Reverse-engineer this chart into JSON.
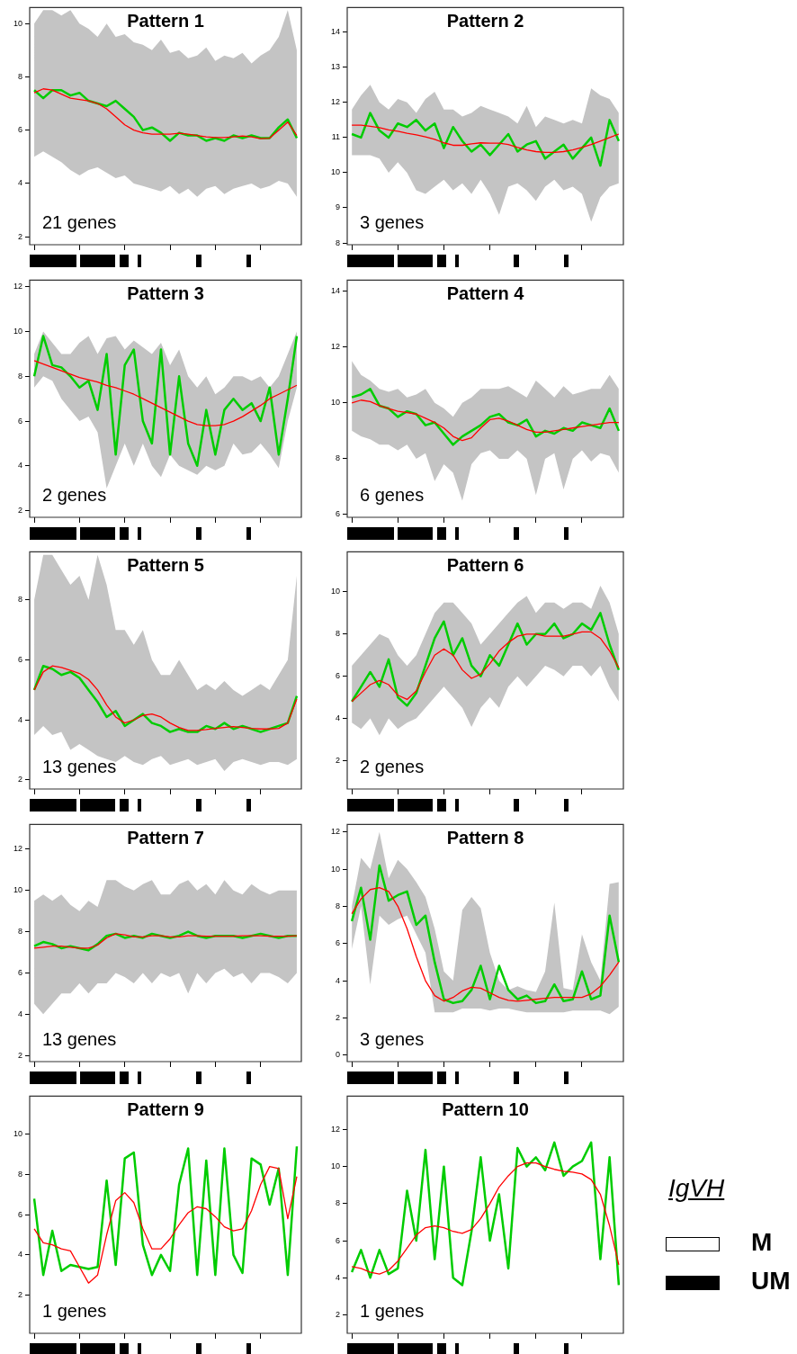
{
  "chart_data": [
    {
      "type": "line",
      "title": "Pattern 1",
      "annotations": [
        "21 genes"
      ],
      "marker": "none",
      "tick_labels": "y",
      "ylim": [
        1.7,
        10.6
      ],
      "yticks": [
        2,
        4,
        6,
        8,
        10
      ],
      "categories": [
        null,
        null,
        null,
        null,
        null,
        null,
        null,
        null,
        null,
        null,
        null,
        null,
        null,
        null,
        null,
        null,
        null,
        null,
        null,
        null,
        null,
        null,
        null,
        null,
        null,
        null,
        null,
        null,
        null,
        null
      ],
      "series": [
        {
          "color": "#00cc00",
          "values": [
            7.5,
            7.2,
            7.5,
            7.5,
            7.3,
            7.4,
            7.1,
            7.0,
            6.9,
            7.1,
            6.8,
            6.5,
            6.0,
            6.1,
            5.9,
            5.6,
            5.9,
            5.8,
            5.8,
            5.6,
            5.7,
            5.6,
            5.8,
            5.7,
            5.8,
            5.7,
            5.7,
            6.1,
            6.4,
            5.7
          ],
          "lower": [
            5.0,
            5.2,
            5.0,
            4.8,
            4.5,
            4.3,
            4.5,
            4.6,
            4.4,
            4.2,
            4.3,
            4.0,
            3.9,
            3.8,
            3.7,
            3.9,
            3.6,
            3.8,
            3.5,
            3.8,
            3.9,
            3.6,
            3.8,
            3.9,
            4.0,
            3.8,
            3.9,
            4.1,
            4.0,
            3.5
          ],
          "upper": [
            10.0,
            10.5,
            10.5,
            10.3,
            10.5,
            10.0,
            9.8,
            9.5,
            10.0,
            9.5,
            9.6,
            9.3,
            9.2,
            9.0,
            9.4,
            8.9,
            9.0,
            8.7,
            8.8,
            9.1,
            8.6,
            8.8,
            8.7,
            8.9,
            8.5,
            8.8,
            9.0,
            9.5,
            10.5,
            9.0
          ]
        },
        {
          "color": "#ff0000",
          "values": [
            7.4,
            7.55,
            7.5,
            7.35,
            7.2,
            7.15,
            7.1,
            7.0,
            6.8,
            6.5,
            6.2,
            6.0,
            5.9,
            5.85,
            5.85,
            5.85,
            5.88,
            5.85,
            5.8,
            5.75,
            5.72,
            5.72,
            5.75,
            5.78,
            5.75,
            5.68,
            5.7,
            6.0,
            6.3,
            5.8
          ]
        }
      ]
    },
    {
      "type": "line",
      "title": "Pattern 2",
      "annotations": [
        "3 genes"
      ],
      "marker": "none",
      "tick_labels": "y",
      "ylim": [
        7.95,
        14.7
      ],
      "yticks": [
        8,
        9,
        10,
        11,
        12,
        13,
        14
      ],
      "categories": [
        null,
        null,
        null,
        null,
        null,
        null,
        null,
        null,
        null,
        null,
        null,
        null,
        null,
        null,
        null,
        null,
        null,
        null,
        null,
        null,
        null,
        null,
        null,
        null,
        null,
        null,
        null,
        null,
        null,
        null
      ],
      "series": [
        {
          "color": "#00cc00",
          "values": [
            11.1,
            11.0,
            11.7,
            11.2,
            11.0,
            11.4,
            11.3,
            11.5,
            11.2,
            11.4,
            10.7,
            11.3,
            10.9,
            10.6,
            10.8,
            10.5,
            10.8,
            11.1,
            10.6,
            10.8,
            10.9,
            10.4,
            10.6,
            10.8,
            10.4,
            10.7,
            11.0,
            10.2,
            11.5,
            10.9
          ],
          "lower": [
            10.5,
            10.5,
            10.5,
            10.4,
            10.0,
            10.3,
            10.0,
            9.5,
            9.4,
            9.6,
            9.8,
            9.5,
            9.7,
            9.4,
            9.8,
            9.4,
            8.8,
            9.6,
            9.7,
            9.5,
            9.2,
            9.6,
            9.8,
            9.5,
            9.6,
            9.4,
            8.6,
            9.3,
            9.6,
            9.7
          ],
          "upper": [
            11.8,
            12.2,
            12.5,
            12.0,
            11.8,
            12.1,
            12.0,
            11.7,
            12.1,
            12.3,
            11.8,
            11.8,
            11.6,
            11.7,
            11.9,
            11.8,
            11.7,
            11.6,
            11.4,
            11.9,
            11.3,
            11.6,
            11.5,
            11.4,
            11.5,
            11.4,
            12.4,
            12.2,
            12.1,
            11.7
          ]
        },
        {
          "color": "#ff0000",
          "values": [
            11.35,
            11.35,
            11.32,
            11.28,
            11.22,
            11.18,
            11.12,
            11.08,
            11.02,
            10.95,
            10.85,
            10.78,
            10.78,
            10.82,
            10.85,
            10.84,
            10.84,
            10.8,
            10.72,
            10.65,
            10.6,
            10.58,
            10.58,
            10.6,
            10.65,
            10.72,
            10.8,
            10.9,
            11.0,
            11.1
          ]
        }
      ]
    },
    {
      "type": "line",
      "title": "Pattern 3",
      "annotations": [
        "2 genes"
      ],
      "marker": "none",
      "tick_labels": "y",
      "ylim": [
        1.7,
        12.3
      ],
      "yticks": [
        2,
        4,
        6,
        8,
        10,
        12
      ],
      "categories": [
        null,
        null,
        null,
        null,
        null,
        null,
        null,
        null,
        null,
        null,
        null,
        null,
        null,
        null,
        null,
        null,
        null,
        null,
        null,
        null,
        null,
        null,
        null,
        null,
        null,
        null,
        null,
        null,
        null,
        null
      ],
      "series": [
        {
          "color": "#00cc00",
          "values": [
            8.0,
            9.8,
            8.5,
            8.4,
            8.0,
            7.5,
            7.8,
            6.5,
            9.0,
            4.5,
            8.5,
            9.2,
            6.0,
            5.0,
            9.2,
            4.5,
            8.0,
            5.0,
            4.0,
            6.5,
            4.5,
            6.5,
            7.0,
            6.5,
            6.8,
            6.0,
            7.5,
            4.5,
            7.0,
            9.8
          ],
          "lower": [
            7.5,
            8.0,
            7.8,
            7.0,
            6.5,
            6.0,
            6.2,
            5.5,
            3.0,
            4.0,
            5.0,
            4.0,
            5.0,
            4.0,
            3.5,
            4.5,
            4.0,
            3.8,
            3.6,
            4.0,
            3.8,
            4.0,
            5.0,
            4.5,
            4.6,
            5.0,
            4.5,
            3.9,
            6.0,
            7.5
          ],
          "upper": [
            9.0,
            10.0,
            9.5,
            9.0,
            9.0,
            9.5,
            9.8,
            9.0,
            9.7,
            9.8,
            9.2,
            9.6,
            9.3,
            9.0,
            9.5,
            8.5,
            9.2,
            8.0,
            7.5,
            8.0,
            7.2,
            7.5,
            8.0,
            8.0,
            7.8,
            8.0,
            7.5,
            8.0,
            9.0,
            10.0
          ]
        },
        {
          "color": "#ff0000",
          "values": [
            8.7,
            8.55,
            8.4,
            8.25,
            8.1,
            7.95,
            7.85,
            7.75,
            7.6,
            7.5,
            7.35,
            7.2,
            7.0,
            6.8,
            6.6,
            6.4,
            6.2,
            6.0,
            5.85,
            5.8,
            5.8,
            5.85,
            6.0,
            6.2,
            6.45,
            6.7,
            7.0,
            7.2,
            7.4,
            7.6
          ]
        }
      ]
    },
    {
      "type": "line",
      "title": "Pattern 4",
      "annotations": [
        "6 genes"
      ],
      "marker": "none",
      "tick_labels": "y",
      "ylim": [
        5.9,
        14.4
      ],
      "yticks": [
        6,
        8,
        10,
        12,
        14
      ],
      "categories": [
        null,
        null,
        null,
        null,
        null,
        null,
        null,
        null,
        null,
        null,
        null,
        null,
        null,
        null,
        null,
        null,
        null,
        null,
        null,
        null,
        null,
        null,
        null,
        null,
        null,
        null,
        null,
        null,
        null,
        null
      ],
      "series": [
        {
          "color": "#00cc00",
          "values": [
            10.2,
            10.3,
            10.5,
            9.9,
            9.8,
            9.5,
            9.7,
            9.6,
            9.2,
            9.3,
            8.9,
            8.5,
            8.8,
            9.0,
            9.2,
            9.5,
            9.6,
            9.3,
            9.2,
            9.4,
            8.8,
            9.0,
            8.9,
            9.1,
            9.0,
            9.3,
            9.2,
            9.1,
            9.8,
            9.0
          ],
          "lower": [
            9.0,
            8.8,
            8.7,
            8.5,
            8.5,
            8.3,
            8.5,
            8.0,
            8.2,
            7.2,
            7.8,
            7.5,
            6.5,
            7.8,
            8.2,
            8.3,
            8.0,
            8.0,
            8.3,
            8.0,
            6.7,
            8.0,
            8.2,
            6.9,
            8.0,
            8.3,
            7.9,
            8.2,
            8.1,
            7.5
          ],
          "upper": [
            11.5,
            11.0,
            10.8,
            10.5,
            10.4,
            10.5,
            10.2,
            10.3,
            10.5,
            10.0,
            9.8,
            9.5,
            10.0,
            10.2,
            10.5,
            10.5,
            10.5,
            10.6,
            10.4,
            10.2,
            10.8,
            10.5,
            10.2,
            10.6,
            10.3,
            10.4,
            10.5,
            10.5,
            11.0,
            10.5
          ]
        },
        {
          "color": "#ff0000",
          "values": [
            10.0,
            10.1,
            10.05,
            9.9,
            9.8,
            9.7,
            9.65,
            9.6,
            9.45,
            9.3,
            9.1,
            8.8,
            8.65,
            8.75,
            9.1,
            9.4,
            9.45,
            9.35,
            9.2,
            9.05,
            8.95,
            8.95,
            9.0,
            9.05,
            9.1,
            9.15,
            9.2,
            9.25,
            9.3,
            9.3
          ]
        }
      ]
    },
    {
      "type": "line",
      "title": "Pattern 5",
      "annotations": [
        "13 genes"
      ],
      "marker": "none",
      "tick_labels": "y",
      "ylim": [
        1.7,
        9.6
      ],
      "yticks": [
        2,
        4,
        6,
        8
      ],
      "categories": [
        null,
        null,
        null,
        null,
        null,
        null,
        null,
        null,
        null,
        null,
        null,
        null,
        null,
        null,
        null,
        null,
        null,
        null,
        null,
        null,
        null,
        null,
        null,
        null,
        null,
        null,
        null,
        null,
        null,
        null
      ],
      "series": [
        {
          "color": "#00cc00",
          "values": [
            5.0,
            5.8,
            5.7,
            5.5,
            5.6,
            5.4,
            5.0,
            4.6,
            4.1,
            4.3,
            3.8,
            4.0,
            4.2,
            3.9,
            3.8,
            3.6,
            3.7,
            3.6,
            3.6,
            3.8,
            3.7,
            3.9,
            3.7,
            3.8,
            3.7,
            3.6,
            3.7,
            3.8,
            3.9,
            4.8
          ],
          "lower": [
            3.5,
            3.8,
            3.5,
            3.6,
            3.0,
            3.2,
            3.0,
            2.8,
            2.7,
            2.6,
            2.8,
            2.6,
            2.5,
            2.7,
            2.8,
            2.5,
            2.6,
            2.7,
            2.5,
            2.6,
            2.7,
            2.3,
            2.6,
            2.7,
            2.6,
            2.5,
            2.6,
            2.6,
            2.5,
            2.7
          ],
          "upper": [
            8.0,
            9.5,
            9.5,
            9.0,
            8.5,
            8.8,
            8.0,
            9.5,
            8.5,
            7.0,
            7.0,
            6.5,
            7.0,
            6.0,
            5.5,
            5.5,
            6.0,
            5.5,
            5.0,
            5.2,
            5.0,
            5.3,
            5.0,
            4.8,
            5.0,
            5.2,
            5.0,
            5.5,
            6.0,
            8.8
          ]
        },
        {
          "color": "#ff0000",
          "values": [
            5.0,
            5.6,
            5.8,
            5.75,
            5.65,
            5.55,
            5.35,
            5.0,
            4.5,
            4.1,
            3.9,
            4.0,
            4.15,
            4.2,
            4.1,
            3.9,
            3.75,
            3.65,
            3.65,
            3.68,
            3.72,
            3.75,
            3.78,
            3.75,
            3.72,
            3.7,
            3.7,
            3.72,
            3.9,
            4.7
          ]
        }
      ]
    },
    {
      "type": "line",
      "title": "Pattern 6",
      "annotations": [
        "2 genes"
      ],
      "marker": "none",
      "tick_labels": "y",
      "ylim": [
        0.65,
        11.9
      ],
      "yticks": [
        2,
        4,
        6,
        8,
        10
      ],
      "categories": [
        null,
        null,
        null,
        null,
        null,
        null,
        null,
        null,
        null,
        null,
        null,
        null,
        null,
        null,
        null,
        null,
        null,
        null,
        null,
        null,
        null,
        null,
        null,
        null,
        null,
        null,
        null,
        null,
        null,
        null
      ],
      "series": [
        {
          "color": "#00cc00",
          "values": [
            4.8,
            5.5,
            6.2,
            5.5,
            6.8,
            5.0,
            4.6,
            5.2,
            6.5,
            7.8,
            8.6,
            7.0,
            7.8,
            6.5,
            6.0,
            7.0,
            6.5,
            7.5,
            8.5,
            7.5,
            8.0,
            8.0,
            8.5,
            7.8,
            8.0,
            8.5,
            8.2,
            9.0,
            7.5,
            6.3
          ],
          "lower": [
            3.8,
            3.5,
            4.0,
            3.2,
            4.0,
            3.5,
            3.8,
            4.0,
            4.5,
            5.0,
            5.5,
            5.0,
            4.5,
            3.6,
            4.5,
            5.0,
            4.5,
            5.5,
            6.0,
            5.5,
            6.0,
            6.5,
            6.3,
            6.0,
            6.5,
            6.5,
            6.0,
            6.5,
            5.5,
            4.8
          ],
          "upper": [
            6.5,
            7.0,
            7.5,
            8.0,
            7.8,
            7.0,
            6.5,
            7.0,
            8.0,
            9.0,
            9.5,
            9.5,
            9.0,
            8.5,
            7.5,
            8.0,
            8.5,
            9.0,
            9.5,
            9.8,
            9.0,
            9.5,
            9.5,
            9.2,
            9.5,
            9.5,
            9.2,
            10.3,
            9.5,
            8.0
          ]
        },
        {
          "color": "#ff0000",
          "values": [
            4.8,
            5.2,
            5.6,
            5.8,
            5.6,
            5.1,
            4.9,
            5.3,
            6.2,
            7.0,
            7.3,
            7.0,
            6.3,
            5.9,
            6.1,
            6.6,
            7.2,
            7.6,
            7.9,
            8.0,
            8.0,
            7.9,
            7.9,
            7.9,
            8.0,
            8.1,
            8.1,
            7.8,
            7.2,
            6.4
          ]
        }
      ]
    },
    {
      "type": "line",
      "title": "Pattern 7",
      "annotations": [
        "13 genes"
      ],
      "marker": "none",
      "tick_labels": "y",
      "ylim": [
        1.7,
        13.2
      ],
      "yticks": [
        2,
        4,
        6,
        8,
        10,
        12
      ],
      "categories": [
        null,
        null,
        null,
        null,
        null,
        null,
        null,
        null,
        null,
        null,
        null,
        null,
        null,
        null,
        null,
        null,
        null,
        null,
        null,
        null,
        null,
        null,
        null,
        null,
        null,
        null,
        null,
        null,
        null,
        null
      ],
      "series": [
        {
          "color": "#00cc00",
          "values": [
            7.3,
            7.5,
            7.4,
            7.2,
            7.3,
            7.2,
            7.1,
            7.4,
            7.8,
            7.9,
            7.7,
            7.8,
            7.7,
            7.9,
            7.8,
            7.7,
            7.8,
            8.0,
            7.8,
            7.7,
            7.8,
            7.8,
            7.8,
            7.7,
            7.8,
            7.9,
            7.8,
            7.7,
            7.8,
            7.8
          ],
          "lower": [
            4.5,
            4.0,
            4.5,
            5.0,
            5.0,
            5.5,
            5.0,
            5.5,
            5.5,
            6.0,
            5.8,
            5.5,
            6.0,
            5.5,
            6.0,
            5.8,
            6.0,
            5.0,
            6.0,
            5.5,
            6.0,
            6.2,
            5.8,
            6.0,
            5.5,
            6.0,
            6.0,
            5.8,
            5.5,
            6.0
          ],
          "upper": [
            9.5,
            9.8,
            9.5,
            9.8,
            9.3,
            9.0,
            9.5,
            9.2,
            10.5,
            10.5,
            10.2,
            10.0,
            10.3,
            10.5,
            9.8,
            9.8,
            10.3,
            10.5,
            10.0,
            10.3,
            9.8,
            10.5,
            10.0,
            9.8,
            10.3,
            10.0,
            9.8,
            10.0,
            10.0,
            10.0
          ]
        },
        {
          "color": "#ff0000",
          "values": [
            7.2,
            7.25,
            7.3,
            7.3,
            7.25,
            7.2,
            7.2,
            7.35,
            7.7,
            7.9,
            7.85,
            7.75,
            7.75,
            7.8,
            7.8,
            7.75,
            7.75,
            7.8,
            7.8,
            7.78,
            7.78,
            7.78,
            7.78,
            7.8,
            7.8,
            7.8,
            7.78,
            7.78,
            7.78,
            7.8
          ]
        }
      ]
    },
    {
      "type": "line",
      "title": "Pattern 8",
      "annotations": [
        "3 genes"
      ],
      "marker": "none",
      "tick_labels": "y",
      "ylim": [
        -0.35,
        12.4
      ],
      "yticks": [
        0,
        2,
        4,
        6,
        8,
        10,
        12
      ],
      "categories": [
        null,
        null,
        null,
        null,
        null,
        null,
        null,
        null,
        null,
        null,
        null,
        null,
        null,
        null,
        null,
        null,
        null,
        null,
        null,
        null,
        null,
        null,
        null,
        null,
        null,
        null,
        null,
        null,
        null,
        null
      ],
      "series": [
        {
          "color": "#00cc00",
          "values": [
            7.2,
            9.0,
            6.2,
            10.2,
            8.3,
            8.6,
            8.8,
            7.0,
            7.5,
            5.0,
            3.0,
            2.8,
            2.9,
            3.5,
            4.8,
            3.0,
            4.8,
            3.5,
            3.0,
            3.2,
            2.8,
            2.9,
            3.8,
            2.9,
            3.0,
            4.5,
            3.0,
            3.2,
            7.5,
            5.0
          ],
          "lower": [
            5.7,
            8.0,
            3.8,
            7.5,
            7.0,
            7.3,
            7.5,
            6.5,
            5.5,
            2.3,
            2.3,
            2.3,
            2.5,
            2.5,
            2.5,
            2.4,
            2.5,
            2.5,
            2.4,
            2.3,
            2.3,
            2.3,
            2.3,
            2.3,
            2.4,
            2.4,
            2.4,
            2.4,
            2.2,
            2.6
          ],
          "upper": [
            8.0,
            10.6,
            10.0,
            12.0,
            9.5,
            10.5,
            10.0,
            9.3,
            8.5,
            6.8,
            4.5,
            4.0,
            7.8,
            8.5,
            7.9,
            5.5,
            4.0,
            3.5,
            3.7,
            3.5,
            3.4,
            4.5,
            8.2,
            3.6,
            3.5,
            6.5,
            5.0,
            4.0,
            9.2,
            9.3
          ]
        },
        {
          "color": "#ff0000",
          "values": [
            7.6,
            8.4,
            8.9,
            9.0,
            8.8,
            8.0,
            6.8,
            5.3,
            4.0,
            3.2,
            2.9,
            3.1,
            3.45,
            3.65,
            3.6,
            3.35,
            3.1,
            2.95,
            2.9,
            2.95,
            3.0,
            3.05,
            3.1,
            3.1,
            3.1,
            3.1,
            3.3,
            3.7,
            4.3,
            5.0
          ]
        }
      ]
    },
    {
      "type": "line",
      "title": "Pattern 9",
      "annotations": [
        "1 genes"
      ],
      "marker": "none",
      "tick_labels": "y",
      "ylim": [
        0.1,
        11.9
      ],
      "yticks": [
        2,
        4,
        6,
        8,
        10
      ],
      "categories": [
        null,
        null,
        null,
        null,
        null,
        null,
        null,
        null,
        null,
        null,
        null,
        null,
        null,
        null,
        null,
        null,
        null,
        null,
        null,
        null,
        null,
        null,
        null,
        null,
        null,
        null,
        null,
        null,
        null,
        null
      ],
      "series": [
        {
          "color": "#00cc00",
          "values": [
            6.8,
            3.0,
            5.2,
            3.2,
            3.5,
            3.4,
            3.3,
            3.4,
            7.7,
            3.5,
            8.8,
            9.1,
            4.5,
            3.0,
            4.0,
            3.2,
            7.5,
            9.3,
            3.0,
            8.7,
            3.0,
            9.3,
            4.0,
            3.1,
            8.8,
            8.5,
            6.5,
            8.3,
            3.0,
            9.4
          ]
        },
        {
          "color": "#ff0000",
          "values": [
            5.3,
            4.6,
            4.5,
            4.3,
            4.2,
            3.4,
            2.6,
            3.0,
            5.0,
            6.7,
            7.1,
            6.6,
            5.3,
            4.3,
            4.3,
            4.8,
            5.5,
            6.1,
            6.4,
            6.3,
            5.9,
            5.4,
            5.2,
            5.3,
            6.2,
            7.5,
            8.4,
            8.3,
            5.8,
            7.9
          ]
        }
      ]
    },
    {
      "type": "line",
      "title": "Pattern 10",
      "annotations": [
        "1 genes"
      ],
      "marker": "none",
      "tick_labels": "y",
      "ylim": [
        1.0,
        13.8
      ],
      "yticks": [
        2,
        4,
        6,
        8,
        10,
        12
      ],
      "categories": [
        null,
        null,
        null,
        null,
        null,
        null,
        null,
        null,
        null,
        null,
        null,
        null,
        null,
        null,
        null,
        null,
        null,
        null,
        null,
        null,
        null,
        null,
        null,
        null,
        null,
        null,
        null,
        null,
        null,
        null
      ],
      "series": [
        {
          "color": "#00cc00",
          "values": [
            4.3,
            5.5,
            4.0,
            5.5,
            4.2,
            4.5,
            8.7,
            6.0,
            10.9,
            5.0,
            10.0,
            4.0,
            3.6,
            6.5,
            10.5,
            6.0,
            8.5,
            4.5,
            11.0,
            10.0,
            10.5,
            9.8,
            11.3,
            9.5,
            10.0,
            10.3,
            11.3,
            5.0,
            10.5,
            3.6
          ]
        },
        {
          "color": "#ff0000",
          "values": [
            4.6,
            4.5,
            4.3,
            4.2,
            4.4,
            4.9,
            5.6,
            6.3,
            6.7,
            6.8,
            6.7,
            6.5,
            6.4,
            6.6,
            7.2,
            8.0,
            8.9,
            9.5,
            10.0,
            10.2,
            10.2,
            10.0,
            9.85,
            9.75,
            9.7,
            9.6,
            9.3,
            8.5,
            6.8,
            4.7
          ]
        }
      ]
    },
    {
      "type": "other",
      "title": "IgVH",
      "categories": [
        "M",
        "UM"
      ],
      "colors": [
        "#ffffff",
        "#000000"
      ]
    }
  ]
}
